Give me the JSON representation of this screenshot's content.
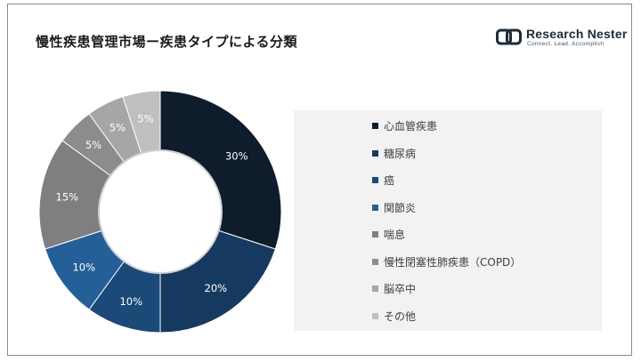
{
  "header": {
    "title": "慢性疾患管理市場ー疾患タイプによる分類"
  },
  "logo": {
    "name": "Research Nester",
    "tagline": "Connect. Lead. Accomplish",
    "color": "#1e2b36"
  },
  "chart_data": {
    "type": "pie",
    "donut": true,
    "title": "",
    "categories": [
      "心血管疾患",
      "糖尿病",
      "癌",
      "関節炎",
      "喘息",
      "慢性閉塞性肺疾患（COPD）",
      "脳卒中",
      "その他"
    ],
    "values": [
      30,
      20,
      10,
      10,
      15,
      5,
      5,
      5
    ],
    "labels": [
      "30%",
      "20%",
      "10%",
      "10%",
      "15%",
      "5%",
      "5%",
      "5%"
    ],
    "unit": "%",
    "colors": [
      "#0e1c2c",
      "#163a5f",
      "#1b4a78",
      "#245f98",
      "#7f7f7f",
      "#8c8c8c",
      "#a6a6a6",
      "#bfbfbf"
    ],
    "label_colors": [
      "#ffffff",
      "#ffffff",
      "#ffffff",
      "#ffffff",
      "#ffffff",
      "#ffffff",
      "#ffffff",
      "#ffffff"
    ],
    "start_angle_deg": 0,
    "direction": "clockwise",
    "legend_position": "right"
  }
}
